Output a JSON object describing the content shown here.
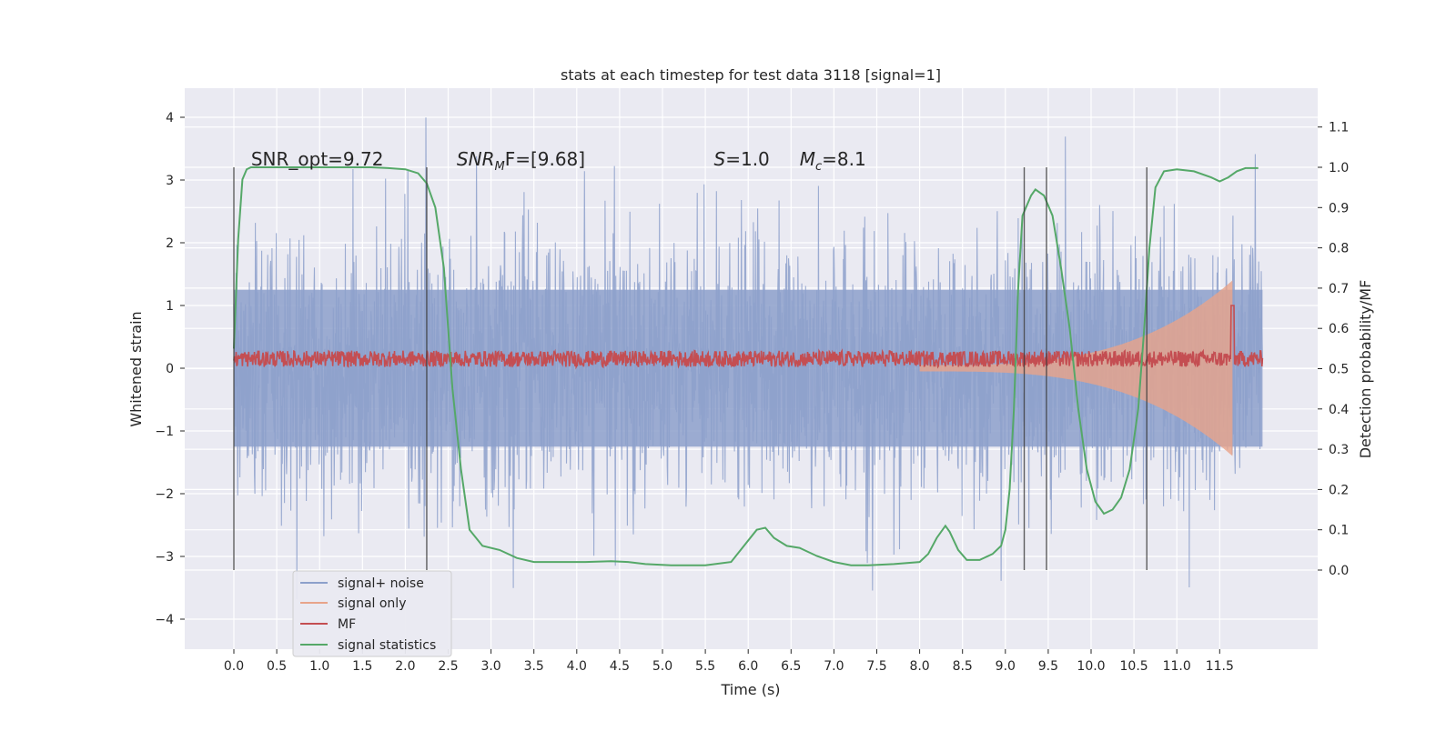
{
  "chart_data": {
    "type": "line",
    "title": "stats at each timestep for test data 3118 [signal=1]",
    "xlabel": "Time (s)",
    "ylabel_left": "Whitened strain",
    "ylabel_right": "Detection probability/MF",
    "xlim": [
      -0.58,
      12.58
    ],
    "ylim_left": [
      -4.45,
      4.45
    ],
    "ylim_right": [
      -0.2,
      1.19
    ],
    "x_ticks": [
      0.0,
      0.5,
      1.0,
      1.5,
      2.0,
      2.5,
      3.0,
      3.5,
      4.0,
      4.5,
      5.0,
      5.5,
      6.0,
      6.5,
      7.0,
      7.5,
      8.0,
      8.5,
      9.0,
      9.5,
      10.0,
      10.5,
      11.0,
      11.5
    ],
    "x_tick_labels": [
      "0.0",
      "0.5",
      "1.0",
      "1.5",
      "2.0",
      "2.5",
      "3.0",
      "3.5",
      "4.0",
      "4.5",
      "5.0",
      "5.5",
      "6.0",
      "6.5",
      "7.0",
      "7.5",
      "8.0",
      "8.5",
      "9.0",
      "9.5",
      "10.0",
      "10.5",
      "11.0",
      "11.5"
    ],
    "y_left_ticks": [
      4,
      3,
      2,
      1,
      0,
      -1,
      -2,
      -3,
      -4
    ],
    "y_left_tick_labels": [
      "4",
      "3",
      "2",
      "1",
      "0",
      "−1",
      "−2",
      "−3",
      "−4"
    ],
    "y_right_ticks": [
      1.1,
      1.0,
      0.9,
      0.8,
      0.7,
      0.6,
      0.5,
      0.4,
      0.3,
      0.2,
      0.1,
      0.0
    ],
    "y_right_tick_labels": [
      "1.1",
      "1.0",
      "0.9",
      "0.8",
      "0.7",
      "0.6",
      "0.5",
      "0.4",
      "0.3",
      "0.2",
      "0.1",
      "0.0"
    ],
    "grid": true,
    "legend_position": "lower-left",
    "series": [
      {
        "name": "signal+ noise",
        "axis": "left",
        "color": "#8da0cb",
        "x_range": [
          0.0,
          12.0
        ],
        "typical_amplitude": 1.5,
        "peak_range": [
          -4.1,
          4.1
        ]
      },
      {
        "name": "signal only",
        "axis": "left",
        "color": "#e8a48a",
        "x_range": [
          8.0,
          11.65
        ],
        "envelope_peak": 1.35
      },
      {
        "name": "MF",
        "axis": "left",
        "color": "#c44e52",
        "x_range": [
          0.0,
          12.0
        ],
        "baseline": 0.15,
        "peak": {
          "x": 11.65,
          "y": 1.0
        }
      },
      {
        "name": "signal statistics",
        "axis": "right",
        "color": "#55a868",
        "x": [
          0.0,
          0.05,
          0.1,
          0.15,
          0.2,
          0.4,
          0.8,
          1.2,
          1.6,
          1.8,
          2.0,
          2.15,
          2.25,
          2.35,
          2.45,
          2.5,
          2.55,
          2.65,
          2.75,
          2.9,
          3.1,
          3.3,
          3.5,
          3.8,
          4.1,
          4.4,
          4.6,
          4.8,
          5.1,
          5.5,
          5.8,
          5.95,
          6.1,
          6.2,
          6.3,
          6.45,
          6.6,
          6.8,
          7.0,
          7.2,
          7.4,
          7.7,
          8.0,
          8.1,
          8.2,
          8.3,
          8.35,
          8.45,
          8.55,
          8.7,
          8.85,
          8.95,
          9.0,
          9.05,
          9.1,
          9.15,
          9.2,
          9.3,
          9.35,
          9.45,
          9.55,
          9.65,
          9.75,
          9.85,
          9.95,
          10.05,
          10.15,
          10.25,
          10.35,
          10.45,
          10.55,
          10.62,
          10.68,
          10.75,
          10.85,
          11.0,
          11.2,
          11.4,
          11.5,
          11.6,
          11.7,
          11.8,
          11.95
        ],
        "y": [
          0.55,
          0.82,
          0.97,
          0.995,
          1.0,
          1.0,
          1.0,
          1.0,
          1.0,
          0.998,
          0.995,
          0.985,
          0.96,
          0.9,
          0.75,
          0.6,
          0.45,
          0.25,
          0.1,
          0.06,
          0.05,
          0.03,
          0.02,
          0.02,
          0.02,
          0.022,
          0.02,
          0.015,
          0.012,
          0.012,
          0.02,
          0.06,
          0.1,
          0.105,
          0.08,
          0.06,
          0.055,
          0.035,
          0.02,
          0.012,
          0.012,
          0.015,
          0.02,
          0.04,
          0.08,
          0.11,
          0.095,
          0.05,
          0.025,
          0.025,
          0.04,
          0.06,
          0.1,
          0.2,
          0.4,
          0.7,
          0.88,
          0.93,
          0.945,
          0.93,
          0.88,
          0.75,
          0.6,
          0.4,
          0.25,
          0.17,
          0.14,
          0.15,
          0.18,
          0.25,
          0.4,
          0.6,
          0.8,
          0.95,
          0.99,
          0.995,
          0.99,
          0.975,
          0.965,
          0.975,
          0.99,
          0.998,
          0.998
        ]
      }
    ],
    "vertical_lines_x": [
      0.0,
      2.25,
      9.22,
      9.48,
      10.65
    ],
    "annotations": [
      {
        "text": "SNR_opt=9.72",
        "x": 0.2,
        "y_right": 1.0
      },
      {
        "text": "SNR",
        "sub": "M",
        "suffix": "F=[9.68]",
        "x": 2.6,
        "y_right": 1.0
      },
      {
        "text": "S",
        "suffix": "=1.0",
        "x": 5.6,
        "y_right": 1.0
      },
      {
        "text": "M",
        "sub": "c",
        "suffix": "=8.1",
        "x": 6.6,
        "y_right": 1.0
      }
    ]
  }
}
